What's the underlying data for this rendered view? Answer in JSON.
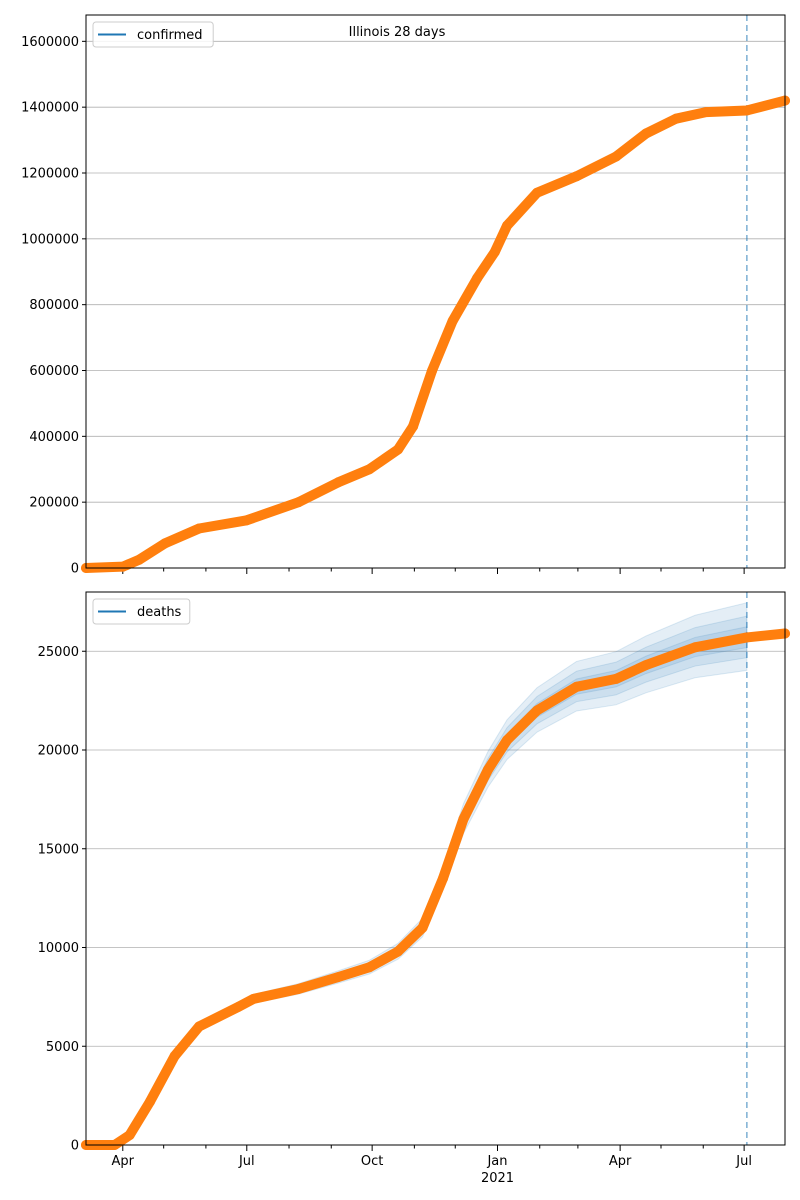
{
  "chart_data": [
    {
      "type": "line",
      "title": "Illinois 28 days",
      "legend": {
        "label": "confirmed",
        "placement": "top-left"
      },
      "xlim": [
        "2020-03-05",
        "2021-07-31"
      ],
      "ylim": [
        0,
        1680000
      ],
      "yticks": [
        0,
        200000,
        400000,
        600000,
        800000,
        1000000,
        1200000,
        1400000,
        1600000
      ],
      "grid": "y",
      "forecast_start": "2021-07-03",
      "series": [
        {
          "name": "confirmed",
          "color": "#ff7f0e",
          "points": [
            [
              "2020-03-05",
              0
            ],
            [
              "2020-04-01",
              4000
            ],
            [
              "2020-04-13",
              25000
            ],
            [
              "2020-05-02",
              75000
            ],
            [
              "2020-05-27",
              120000
            ],
            [
              "2020-07-01",
              145000
            ],
            [
              "2020-08-08",
              200000
            ],
            [
              "2020-09-06",
              260000
            ],
            [
              "2020-09-29",
              300000
            ],
            [
              "2020-10-20",
              360000
            ],
            [
              "2020-10-31",
              430000
            ],
            [
              "2020-11-14",
              600000
            ],
            [
              "2020-11-29",
              750000
            ],
            [
              "2020-12-17",
              880000
            ],
            [
              "2020-12-30",
              960000
            ],
            [
              "2021-01-08",
              1040000
            ],
            [
              "2021-01-30",
              1140000
            ],
            [
              "2021-02-28",
              1190000
            ],
            [
              "2021-03-29",
              1250000
            ],
            [
              "2021-04-20",
              1320000
            ],
            [
              "2021-05-12",
              1365000
            ],
            [
              "2021-06-03",
              1385000
            ],
            [
              "2021-07-03",
              1390000
            ],
            [
              "2021-07-31",
              1420000
            ]
          ]
        }
      ]
    },
    {
      "type": "line",
      "legend": {
        "label": "deaths",
        "placement": "top-left"
      },
      "xlim": [
        "2020-03-05",
        "2021-07-31"
      ],
      "ylim": [
        0,
        28000
      ],
      "yticks": [
        0,
        5000,
        10000,
        15000,
        20000,
        25000
      ],
      "xticks": [
        {
          "date": "2020-04-01",
          "label": "Apr"
        },
        {
          "date": "2020-07-01",
          "label": "Jul"
        },
        {
          "date": "2020-10-01",
          "label": "Oct"
        },
        {
          "date": "2021-01-01",
          "label": "Jan",
          "sublabel": "2021"
        },
        {
          "date": "2021-04-01",
          "label": "Apr"
        },
        {
          "date": "2021-07-01",
          "label": "Jul"
        }
      ],
      "grid": "y",
      "forecast_start": "2021-07-03",
      "band_color": "#1f77b4",
      "band_spreads": [
        0.02,
        0.04,
        0.065
      ],
      "band_start": "2020-04-28",
      "series": [
        {
          "name": "deaths",
          "color": "#ff7f0e",
          "points": [
            [
              "2020-03-05",
              0
            ],
            [
              "2020-03-26",
              0
            ],
            [
              "2020-04-06",
              500
            ],
            [
              "2020-04-21",
              2200
            ],
            [
              "2020-05-09",
              4500
            ],
            [
              "2020-05-27",
              6000
            ],
            [
              "2020-06-25",
              7000
            ],
            [
              "2020-07-06",
              7400
            ],
            [
              "2020-08-08",
              7900
            ],
            [
              "2020-09-06",
              8500
            ],
            [
              "2020-09-29",
              9000
            ],
            [
              "2020-10-20",
              9800
            ],
            [
              "2020-11-07",
              11000
            ],
            [
              "2020-11-22",
              13500
            ],
            [
              "2020-12-07",
              16500
            ],
            [
              "2020-12-25",
              19000
            ],
            [
              "2021-01-08",
              20500
            ],
            [
              "2021-01-30",
              22000
            ],
            [
              "2021-02-28",
              23200
            ],
            [
              "2021-03-29",
              23600
            ],
            [
              "2021-04-20",
              24300
            ],
            [
              "2021-05-26",
              25200
            ],
            [
              "2021-07-03",
              25700
            ],
            [
              "2021-07-31",
              25900
            ]
          ]
        }
      ]
    }
  ]
}
